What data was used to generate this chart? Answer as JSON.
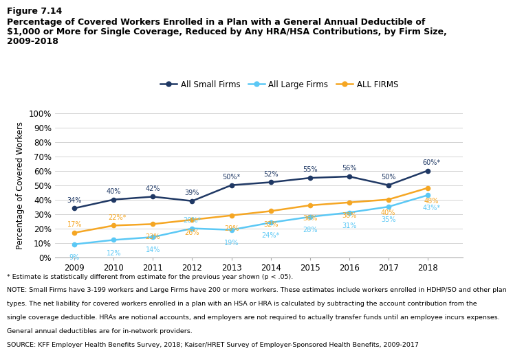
{
  "years": [
    2009,
    2010,
    2011,
    2012,
    2013,
    2014,
    2015,
    2016,
    2017,
    2018
  ],
  "small_firms": [
    34,
    40,
    42,
    39,
    50,
    52,
    55,
    56,
    50,
    60
  ],
  "large_firms": [
    9,
    12,
    14,
    20,
    19,
    24,
    28,
    31,
    35,
    43
  ],
  "all_firms": [
    17,
    22,
    23,
    26,
    29,
    32,
    36,
    38,
    40,
    48
  ],
  "small_firms_labels": [
    "34%",
    "40%",
    "42%",
    "39%",
    "50%*",
    "52%",
    "55%",
    "56%",
    "50%",
    "60%*"
  ],
  "large_firms_labels": [
    "9%",
    "12%",
    "14%",
    "20%*",
    "19%",
    "24%*",
    "28%",
    "31%",
    "35%",
    "43%*"
  ],
  "all_firms_labels": [
    "17%",
    "22%*",
    "23%",
    "26%",
    "29%",
    "32%",
    "36%",
    "38%",
    "40%",
    "48%"
  ],
  "small_firms_color": "#1f3864",
  "large_firms_color": "#5bc8f5",
  "all_firms_color": "#f5a623",
  "figure_label": "Figure 7.14",
  "title_line1": "Percentage of Covered Workers Enrolled in a Plan with a General Annual Deductible of",
  "title_line2": "$1,000 or More for Single Coverage, Reduced by Any HRA/HSA Contributions, by Firm Size,",
  "title_line3": "2009-2018",
  "ylabel": "Percentage of Covered Workers",
  "ylim": [
    0,
    100
  ],
  "yticks": [
    0,
    10,
    20,
    30,
    40,
    50,
    60,
    70,
    80,
    90,
    100
  ],
  "ytick_labels": [
    "0%",
    "10%",
    "20%",
    "30%",
    "40%",
    "50%",
    "60%",
    "70%",
    "80%",
    "90%",
    "100%"
  ],
  "legend_labels": [
    "All Small Firms",
    "All Large Firms",
    "ALL FIRMS"
  ],
  "footnote1": "* Estimate is statistically different from estimate for the previous year shown (p < .05).",
  "footnote2": "NOTE: Small Firms have 3-199 workers and Large Firms have 200 or more workers. These estimates include workers enrolled in HDHP/SO and other plan",
  "footnote3": "types. The net liability for covered workers enrolled in a plan with an HSA or HRA is calculated by subtracting the account contribution from the",
  "footnote4": "single coverage deductible. HRAs are notional accounts, and employers are not required to actually transfer funds until an employee incurs expenses.",
  "footnote5": "General annual deductibles are for in-network providers.",
  "footnote6": "SOURCE: KFF Employer Health Benefits Survey, 2018; Kaiser/HRET Survey of Employer-Sponsored Health Benefits, 2009-2017"
}
